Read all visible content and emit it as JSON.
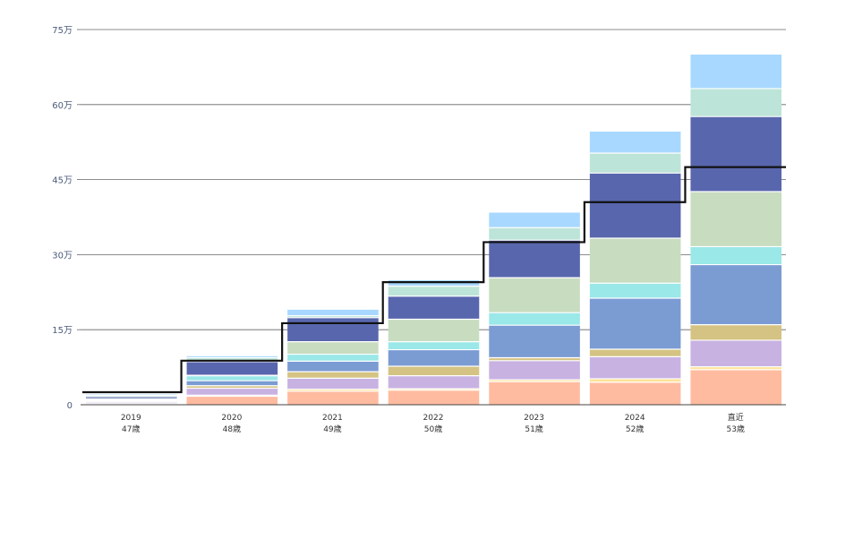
{
  "chart_data": {
    "type": "bar",
    "stacked": true,
    "title": "",
    "xlabel": "",
    "ylabel": "",
    "ylim": [
      0,
      750000
    ],
    "yticks": [
      0,
      150000,
      300000,
      450000,
      600000,
      750000
    ],
    "ytick_labels": [
      "0",
      "15万",
      "30万",
      "45万",
      "60万",
      "75万"
    ],
    "categories": [
      "2019",
      "2020",
      "2021",
      "2022",
      "2023",
      "2024",
      "直近"
    ],
    "category_sublabels": [
      "47歳",
      "48歳",
      "49歳",
      "50歳",
      "51歳",
      "52歳",
      "53歳"
    ],
    "grid": true,
    "series": [
      {
        "name": "s1",
        "color": "#FFBBA0",
        "values": [
          1000,
          17000,
          27000,
          29000,
          46000,
          45000,
          70000
        ]
      },
      {
        "name": "s2",
        "color": "#FFE39A",
        "values": [
          1000,
          2000,
          4000,
          3000,
          4000,
          7000,
          6000
        ]
      },
      {
        "name": "s3",
        "color": "#C8B2E2",
        "values": [
          3000,
          14000,
          22000,
          26000,
          38000,
          44000,
          53000
        ]
      },
      {
        "name": "s4",
        "color": "#D4C383",
        "values": [
          2000,
          5000,
          13000,
          19000,
          6000,
          15000,
          31000
        ]
      },
      {
        "name": "s5",
        "color": "#7B9BD3",
        "values": [
          2000,
          10000,
          21000,
          33000,
          65000,
          102000,
          120000
        ]
      },
      {
        "name": "s6",
        "color": "#9AE8E8",
        "values": [
          1000,
          10000,
          14000,
          16000,
          25000,
          30000,
          36000
        ]
      },
      {
        "name": "s7",
        "color": "#C8DCC0",
        "values": [
          2000,
          1000,
          25000,
          45000,
          70000,
          90000,
          110000
        ]
      },
      {
        "name": "s8",
        "color": "#5866AD",
        "values": [
          4000,
          27000,
          48000,
          46000,
          75000,
          130000,
          150000
        ]
      },
      {
        "name": "s9",
        "color": "#BDE4D8",
        "values": [
          3000,
          8000,
          4000,
          20000,
          25000,
          40000,
          56000
        ]
      },
      {
        "name": "s10",
        "color": "#A8D8FF",
        "values": [
          2000,
          3000,
          12000,
          12000,
          30000,
          43000,
          68000
        ]
      }
    ],
    "line": {
      "name": "line",
      "color": "#111111",
      "values": [
        25000,
        88000,
        163000,
        245000,
        325000,
        405000,
        475000
      ]
    }
  }
}
